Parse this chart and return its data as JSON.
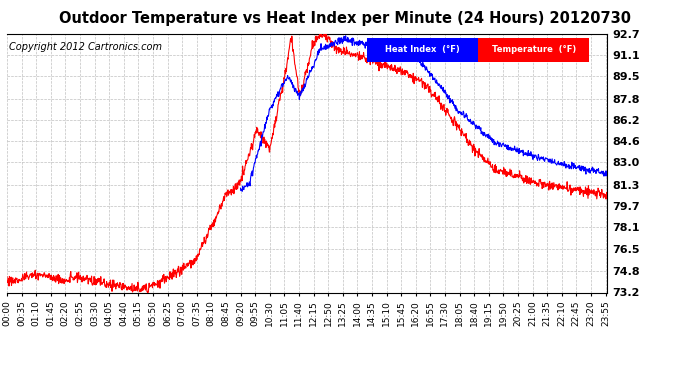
{
  "title": "Outdoor Temperature vs Heat Index per Minute (24 Hours) 20120730",
  "copyright": "Copyright 2012 Cartronics.com",
  "yticks": [
    73.2,
    74.8,
    76.5,
    78.1,
    79.7,
    81.3,
    83.0,
    84.6,
    86.2,
    87.8,
    89.5,
    91.1,
    92.7
  ],
  "xtick_labels": [
    "00:00",
    "00:35",
    "01:10",
    "01:45",
    "02:20",
    "02:55",
    "03:30",
    "04:05",
    "04:40",
    "05:15",
    "05:50",
    "06:25",
    "07:00",
    "07:35",
    "08:10",
    "08:45",
    "09:20",
    "09:55",
    "10:30",
    "11:05",
    "11:40",
    "12:15",
    "12:50",
    "13:25",
    "14:00",
    "14:35",
    "15:10",
    "15:45",
    "16:20",
    "16:55",
    "17:30",
    "18:05",
    "18:40",
    "19:15",
    "19:50",
    "20:25",
    "21:00",
    "21:35",
    "22:10",
    "22:45",
    "23:20",
    "23:55"
  ],
  "ymin": 73.2,
  "ymax": 92.7,
  "temp_color": "#ff0000",
  "heat_color": "#0000ff",
  "bg_color": "#ffffff",
  "grid_color": "#c0c0c0",
  "legend_heat_bg": "#0000ff",
  "legend_temp_bg": "#ff0000",
  "legend_text_color": "#ffffff",
  "title_fontsize": 10.5,
  "copyright_fontsize": 7,
  "tick_fontsize": 6.5,
  "ytick_fontsize": 8
}
